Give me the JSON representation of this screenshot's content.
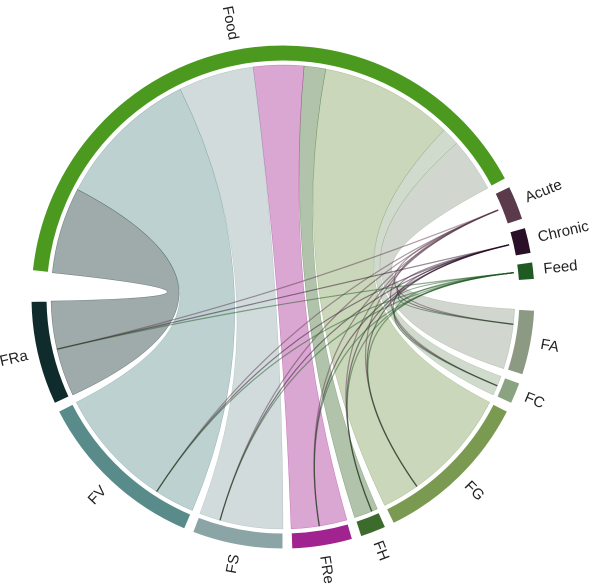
{
  "chart_data": {
    "type": "chord",
    "categories": [
      "Food",
      "Acute",
      "Chronic",
      "Feed",
      "FA",
      "FC",
      "FG",
      "FH",
      "FRe",
      "FS",
      "FV",
      "FRa"
    ],
    "values": [
      146,
      8,
      6,
      4,
      15,
      5,
      37,
      6,
      14,
      21,
      40,
      24
    ],
    "colors": [
      "#4b9a1f",
      "#5b3a4b",
      "#2a0f28",
      "#1f5a22",
      "#8c9a84",
      "#8aa482",
      "#7a9a52",
      "#3c6b2c",
      "#a0238f",
      "#8ba5a7",
      "#5a8b8b",
      "#0f2b2b"
    ]
  }
}
